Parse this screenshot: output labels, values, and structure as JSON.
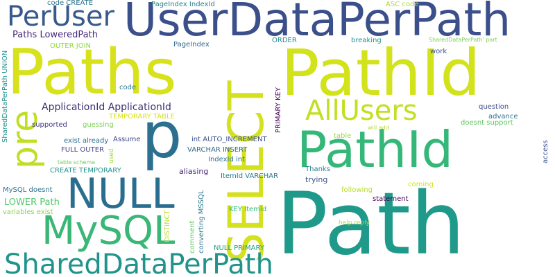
{
  "colors": {
    "background": "#ffffff",
    "palette": [
      "#440154",
      "#3b528b",
      "#21918c",
      "#1fa187",
      "#3fbc73",
      "#5ec962",
      "#aadc32",
      "#d8e219",
      "#fde725"
    ]
  },
  "words": [
    {
      "text": "Path",
      "color": "#1f9a8a"
    },
    {
      "text": "Paths",
      "color": "#d7e21d"
    },
    {
      "text": "PathId",
      "color": "#d2e21b"
    },
    {
      "text": "UserDataPerPath",
      "color": "#3b4f8a"
    },
    {
      "text": "PathId",
      "color": "#35b779"
    },
    {
      "text": "SELECT",
      "color": "#d4e11e"
    },
    {
      "text": "p",
      "color": "#2c6f8e"
    },
    {
      "text": "NULL",
      "color": "#2a6e8f"
    },
    {
      "text": "MySQL",
      "color": "#3ab676"
    },
    {
      "text": "SharedDataPerPath",
      "color": "#20948b"
    },
    {
      "text": "AllUsers",
      "color": "#c3df22"
    },
    {
      "text": "PerUser",
      "color": "#38598c"
    },
    {
      "text": "pre",
      "color": "#c0de25"
    },
    {
      "text": "ApplicationId ApplicationId",
      "color": "#3e2f73"
    },
    {
      "text": "Paths LoweredPath",
      "color": "#472a7a"
    },
    {
      "text": "LOWER Path",
      "color": "#52c569"
    },
    {
      "text": "code CREATE",
      "color": "#2c728e"
    },
    {
      "text": "PageIndex IndexId",
      "color": "#26818e"
    },
    {
      "text": "ASC code",
      "color": "#aadc32"
    },
    {
      "text": "OUTER JOIN",
      "color": "#90d743"
    },
    {
      "text": "PageIndex",
      "color": "#31688e"
    },
    {
      "text": "ORDER",
      "color": "#23888e"
    },
    {
      "text": "breaking",
      "color": "#22908d"
    },
    {
      "text": "SharedDataPerPath' part",
      "color": "#7ad151"
    },
    {
      "text": "work",
      "color": "#3b528b"
    },
    {
      "text": "code",
      "color": "#2a788e"
    },
    {
      "text": "PRIMARY KEY",
      "color": "#440154"
    },
    {
      "text": "question",
      "color": "#3e4a89"
    },
    {
      "text": "advance",
      "color": "#2d708e"
    },
    {
      "text": "doesnt support",
      "color": "#5ec962"
    },
    {
      "text": "will add",
      "color": "#b5de2b"
    },
    {
      "text": "access",
      "color": "#3b528b"
    },
    {
      "text": "supported",
      "color": "#443983"
    },
    {
      "text": "guessing",
      "color": "#7ad151"
    },
    {
      "text": "TEMPORARY TABLE",
      "color": "#d8e219"
    },
    {
      "text": "exist already",
      "color": "#2e6e8e"
    },
    {
      "text": "Assume",
      "color": "#3e4989"
    },
    {
      "text": "FULL OUTER",
      "color": "#414487"
    },
    {
      "text": "used",
      "color": "#a0da39"
    },
    {
      "text": "table schema",
      "color": "#6ece58"
    },
    {
      "text": "CREATE TEMPORARY",
      "color": "#21918c"
    },
    {
      "text": "int AUTO_INCREMENT",
      "color": "#3b528b"
    },
    {
      "text": "VARCHAR INSERT",
      "color": "#31688e"
    },
    {
      "text": "IndexId int",
      "color": "#2c728e"
    },
    {
      "text": "aliasing",
      "color": "#482576"
    },
    {
      "text": "ItemId VARCHAR",
      "color": "#2a788e"
    },
    {
      "text": "table",
      "color": "#9fda3a"
    },
    {
      "text": "Thanks",
      "color": "#26828e"
    },
    {
      "text": "trying",
      "color": "#3b528b"
    },
    {
      "text": "following",
      "color": "#b8de29"
    },
    {
      "text": "coming",
      "color": "#d0e11c"
    },
    {
      "text": "statement",
      "color": "#440154"
    },
    {
      "text": "help reply",
      "color": "#bddf26"
    },
    {
      "text": "MySQL doesnt",
      "color": "#2c728e"
    },
    {
      "text": "variables exist",
      "color": "#84d44b"
    },
    {
      "text": "SharedDataPerPath UNION",
      "color": "#21918c"
    },
    {
      "text": "DISTINCT",
      "color": "#bddf26"
    },
    {
      "text": "comment",
      "color": "#5ec962"
    },
    {
      "text": "converting MSSQL",
      "color": "#2a788e"
    },
    {
      "text": "KEY ItemId",
      "color": "#35b779"
    },
    {
      "text": "NULL PRIMARY",
      "color": "#20a386"
    }
  ]
}
